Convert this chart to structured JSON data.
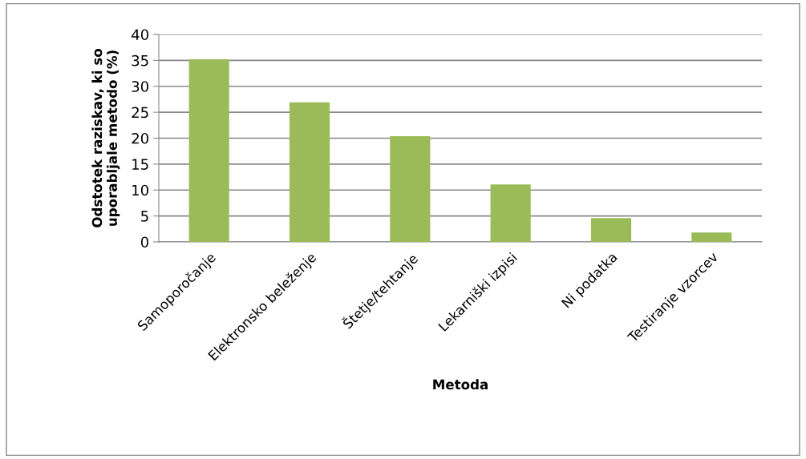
{
  "chart_data": {
    "type": "bar",
    "xlabel": "Metoda",
    "ylabel": "Odstotek raziskav, ki so\nuporabljale metodo (%)",
    "categories": [
      "Samoporočanje",
      "Elektronsko beleženje",
      "Štetje/tehtanje",
      "Lekarniški izpisi",
      "Ni podatka",
      "Testiranje vzorcev"
    ],
    "values": [
      35.2,
      26.9,
      20.4,
      11.1,
      4.6,
      1.8
    ],
    "color": "#9bbb59",
    "ylim": [
      0,
      40
    ],
    "yticks": [
      0,
      5,
      10,
      15,
      20,
      25,
      30,
      35,
      40
    ],
    "grid": "y",
    "legend": false
  }
}
